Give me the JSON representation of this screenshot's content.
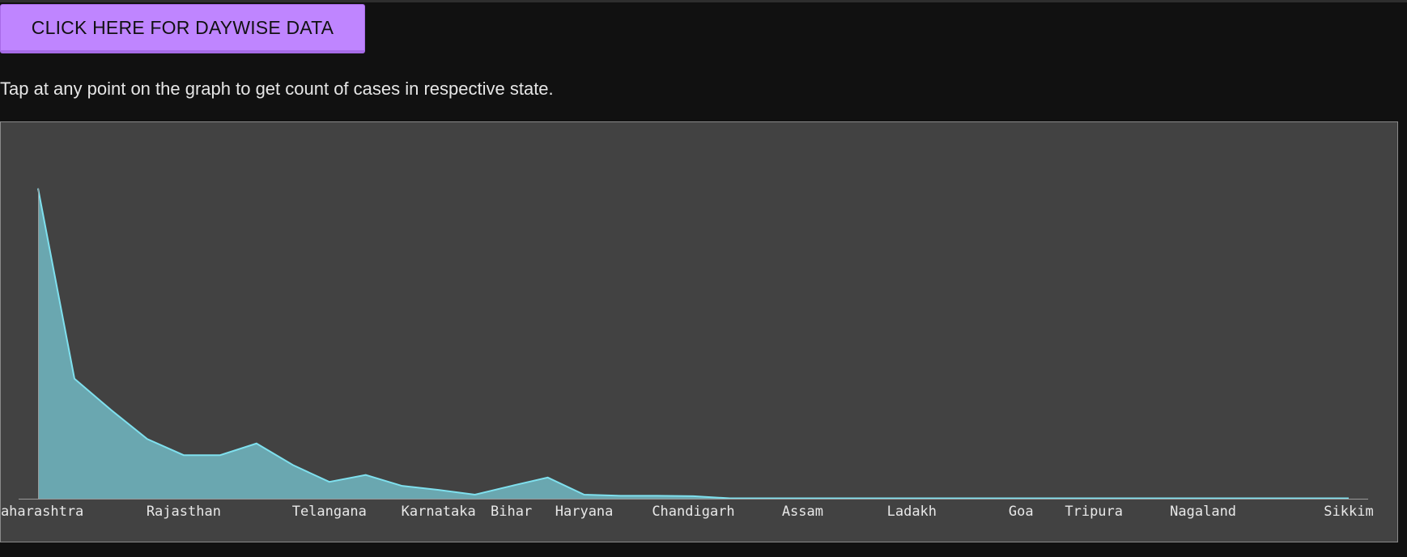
{
  "button": {
    "label": "CLICK HERE FOR DAYWISE DATA"
  },
  "instruction": {
    "text": "Tap at any point on the graph to get count of cases in respective state."
  },
  "colors": {
    "page_background": "#111111",
    "button_background": "#bf85ff",
    "chart_background": "#424242",
    "area_fill": "#6aa7b0",
    "area_stroke": "#7fe0ee",
    "axis": "#9a9a9a",
    "text": "#e6e6e6"
  },
  "chart_data": {
    "type": "area",
    "title": "",
    "xlabel": "",
    "ylabel": "",
    "y_axis_shown": false,
    "grid": false,
    "ylim": [
      0,
      1
    ],
    "x_tick_labels": [
      {
        "label": "Maharashtra",
        "index": 0
      },
      {
        "label": "Rajasthan",
        "index": 4
      },
      {
        "label": "Telangana",
        "index": 8
      },
      {
        "label": "Karnataka",
        "index": 11
      },
      {
        "label": "Bihar",
        "index": 13
      },
      {
        "label": "Haryana",
        "index": 15
      },
      {
        "label": "Chandigarh",
        "index": 18
      },
      {
        "label": "Assam",
        "index": 21
      },
      {
        "label": "Ladakh",
        "index": 24
      },
      {
        "label": "Goa",
        "index": 27
      },
      {
        "label": "Tripura",
        "index": 29
      },
      {
        "label": "Nagaland",
        "index": 32
      },
      {
        "label": "Sikkim",
        "index": 36
      }
    ],
    "series": [
      {
        "values": [
          0.848,
          0.328,
          0.243,
          0.163,
          0.119,
          0.119,
          0.151,
          0.092,
          0.046,
          0.065,
          0.035,
          0.024,
          0.011,
          0.035,
          0.058,
          0.011,
          0.008,
          0.008,
          0.007,
          0.001,
          0.001,
          0.001,
          0.001,
          0.001,
          0.001,
          0.001,
          0.001,
          0.001,
          0.001,
          0.001,
          0.001,
          0.001,
          0.001,
          0.001,
          0.001,
          0.001,
          0.001
        ]
      }
    ]
  }
}
